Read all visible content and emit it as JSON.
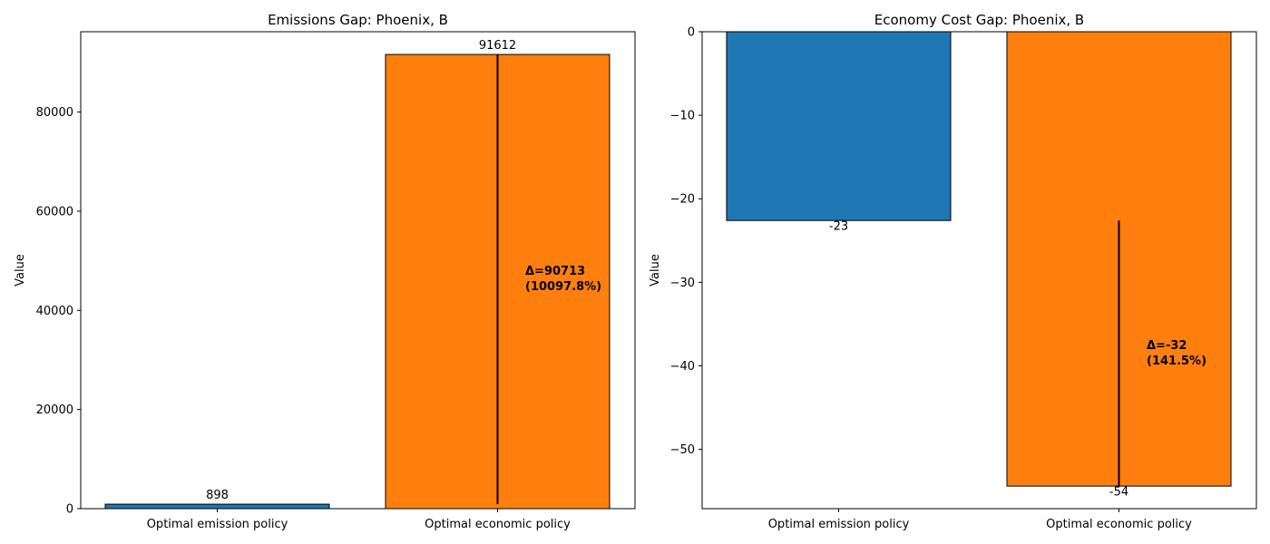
{
  "chart_data": [
    {
      "type": "bar",
      "title": "Emissions Gap: Phoenix, B",
      "xlabel": "",
      "ylabel": "Value",
      "categories": [
        "Optimal emission policy",
        "Optimal economic policy"
      ],
      "values": [
        898,
        91612
      ],
      "value_labels": [
        "898",
        "91612"
      ],
      "colors": [
        "#1f77b4",
        "#ff7f0e"
      ],
      "ylim": [
        0,
        96200
      ],
      "yticks": [
        0,
        20000,
        40000,
        60000,
        80000
      ],
      "ytick_labels": [
        "0",
        "20000",
        "40000",
        "60000",
        "80000"
      ],
      "grid": false,
      "gap_line": {
        "x_category": "Optimal economic policy",
        "from": 898,
        "to": 91612
      },
      "annotation": {
        "line1": "Δ=90713",
        "line2": "(10097.8%)"
      }
    },
    {
      "type": "bar",
      "title": "Economy Cost Gap: Phoenix, B",
      "xlabel": "",
      "ylabel": "Value",
      "categories": [
        "Optimal emission policy",
        "Optimal economic policy"
      ],
      "values": [
        -22.6,
        -54.4
      ],
      "value_labels": [
        "-23",
        "-54"
      ],
      "colors": [
        "#1f77b4",
        "#ff7f0e"
      ],
      "ylim": [
        -57.1,
        0
      ],
      "yticks": [
        0,
        -10,
        -20,
        -30,
        -40,
        -50
      ],
      "ytick_labels": [
        "0",
        "−10",
        "−20",
        "−30",
        "−40",
        "−50"
      ],
      "grid": false,
      "gap_line": {
        "x_category": "Optimal economic policy",
        "from": -22.6,
        "to": -54.4
      },
      "annotation": {
        "line1": "Δ=-32",
        "line2": "(141.5%)"
      }
    }
  ]
}
